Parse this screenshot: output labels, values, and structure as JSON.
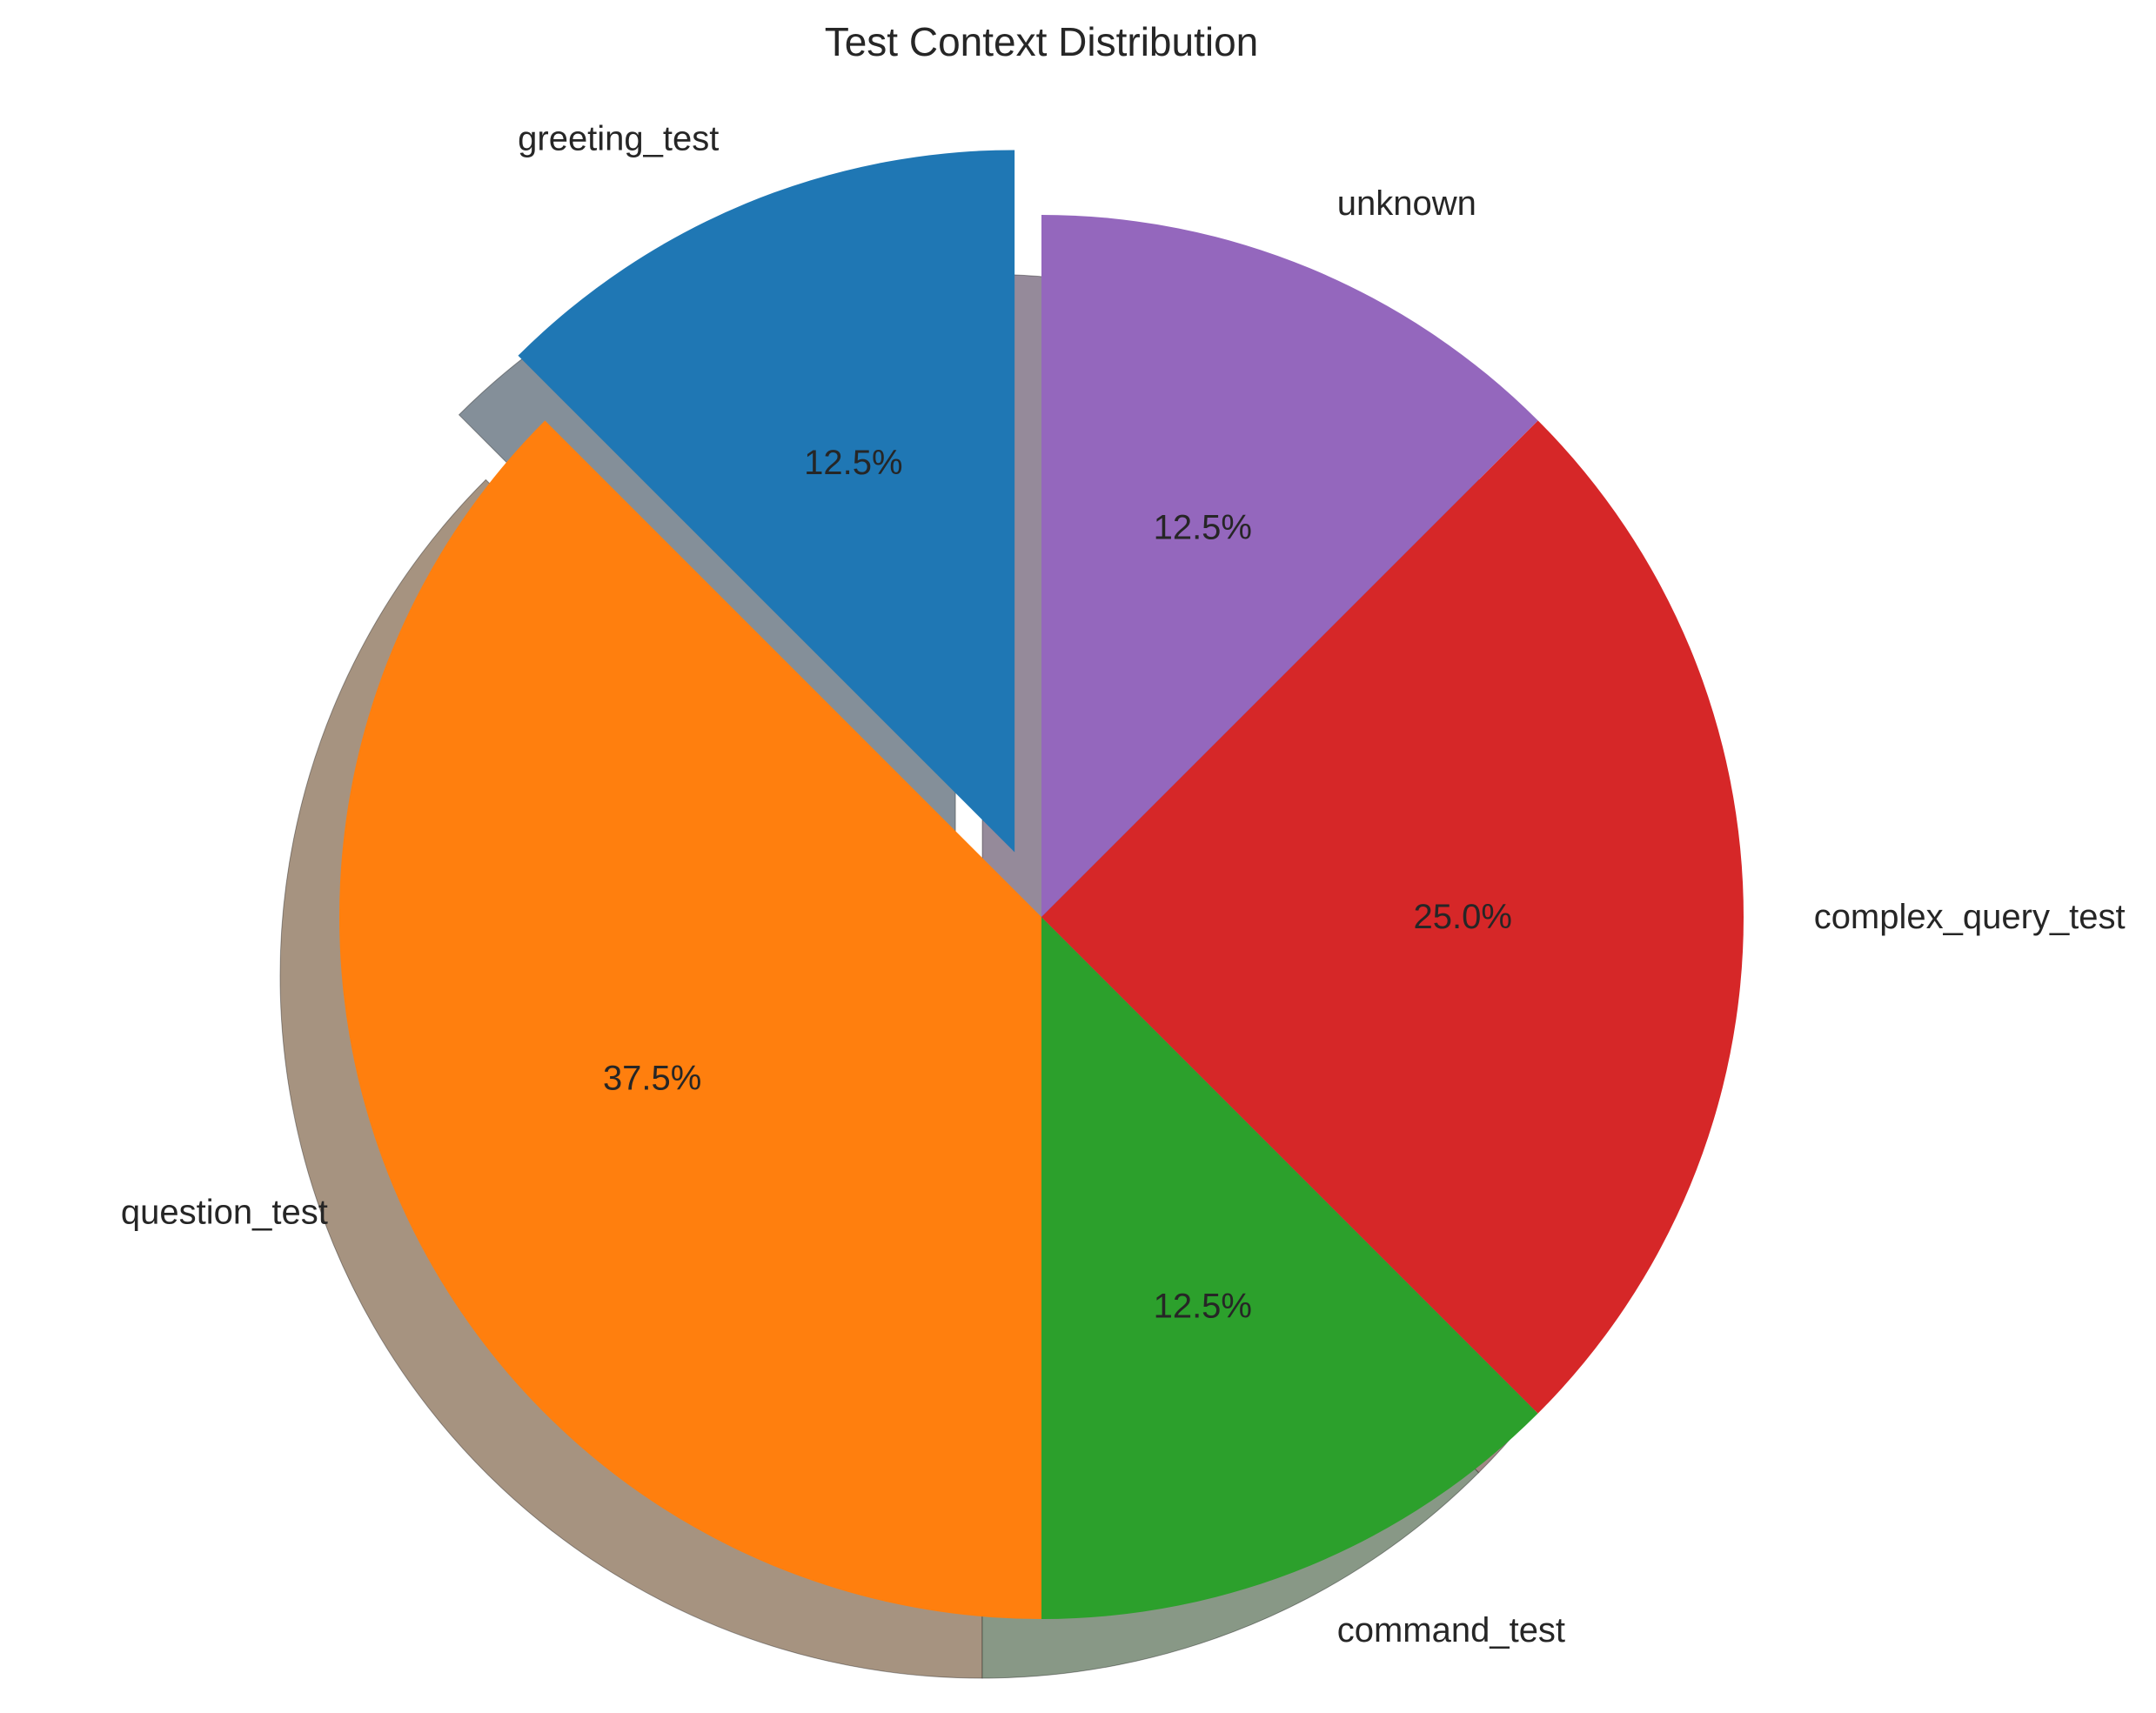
{
  "chart_data": {
    "type": "pie",
    "title": "Test Context Distribution",
    "start_angle_deg": 90,
    "direction": "counterclockwise",
    "shadow": true,
    "slices": [
      {
        "label": "greeting_test",
        "value": 12.5,
        "pct_label": "12.5%",
        "color": "#1f77b4",
        "shadow_color": "#848f99",
        "exploded": true
      },
      {
        "label": "question_test",
        "value": 37.5,
        "pct_label": "37.5%",
        "color": "#ff7f0e",
        "shadow_color": "#a69380",
        "exploded": false
      },
      {
        "label": "command_test",
        "value": 12.5,
        "pct_label": "12.5%",
        "color": "#2ca02c",
        "shadow_color": "#889886",
        "exploded": false
      },
      {
        "label": "complex_query_test",
        "value": 25.0,
        "pct_label": "25.0%",
        "color": "#d62728",
        "shadow_color": "#a08885",
        "exploded": false
      },
      {
        "label": "unknown",
        "value": 12.5,
        "pct_label": "12.5%",
        "color": "#9467bd",
        "shadow_color": "#958a9a",
        "exploded": false
      }
    ]
  }
}
